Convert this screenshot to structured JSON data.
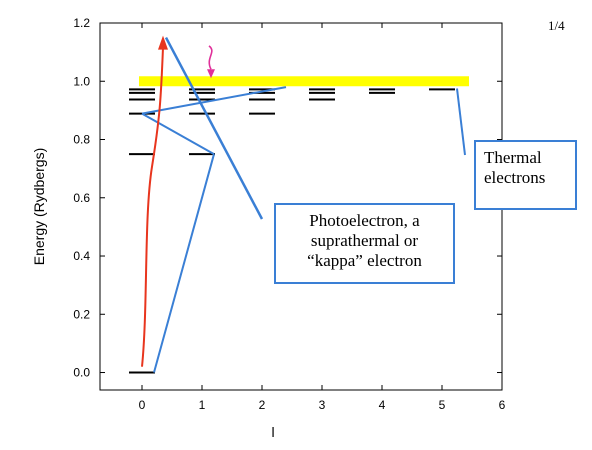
{
  "page_number": "1/4",
  "chart_data": {
    "type": "diagram",
    "title": "",
    "xlabel": "l",
    "ylabel": "Energy (Rydbergs)",
    "xlim": [
      -0.7,
      6
    ],
    "ylim": [
      -0.06,
      1.2
    ],
    "xticks": [
      "0",
      "1",
      "2",
      "3",
      "4",
      "5",
      "6"
    ],
    "yticks": [
      "0.0",
      "0.2",
      "0.4",
      "0.6",
      "0.8",
      "1.0",
      "1.2"
    ],
    "ionization_band": {
      "energy": 1.0,
      "color": "#ffff00"
    },
    "energy_levels": [
      {
        "l": 0,
        "energy": 0.0
      },
      {
        "l": 0,
        "energy": 0.75
      },
      {
        "l": 0,
        "energy": 0.889
      },
      {
        "l": 0,
        "energy": 0.9375
      },
      {
        "l": 0,
        "energy": 0.96
      },
      {
        "l": 0,
        "energy": 0.972
      },
      {
        "l": 1,
        "energy": 0.75
      },
      {
        "l": 1,
        "energy": 0.889
      },
      {
        "l": 1,
        "energy": 0.9375
      },
      {
        "l": 1,
        "energy": 0.96
      },
      {
        "l": 1,
        "energy": 0.972
      },
      {
        "l": 2,
        "energy": 0.889
      },
      {
        "l": 2,
        "energy": 0.9375
      },
      {
        "l": 2,
        "energy": 0.96
      },
      {
        "l": 2,
        "energy": 0.972
      },
      {
        "l": 3,
        "energy": 0.9375
      },
      {
        "l": 3,
        "energy": 0.96
      },
      {
        "l": 3,
        "energy": 0.972
      },
      {
        "l": 4,
        "energy": 0.96
      },
      {
        "l": 4,
        "energy": 0.972
      },
      {
        "l": 5,
        "energy": 0.972
      }
    ],
    "transitions": [
      {
        "from": [
          0.2,
          0.0
        ],
        "to": [
          1.2,
          0.75
        ],
        "color": "#3a7fd5"
      },
      {
        "from": [
          1.2,
          0.75
        ],
        "to": [
          0.0,
          0.889
        ],
        "color": "#3a7fd5"
      },
      {
        "from": [
          0.0,
          0.889
        ],
        "to": [
          2.4,
          0.98
        ],
        "color": "#3a7fd5"
      }
    ],
    "excitation_arrow": {
      "from": [
        0.0,
        0.02
      ],
      "to": [
        0.35,
        1.15
      ],
      "color": "#e8351e"
    },
    "recombination_arrow": {
      "from": [
        1.15,
        1.08
      ],
      "to": [
        1.15,
        1.0
      ],
      "color": "#e0309a"
    },
    "annotations": [
      {
        "label": "Thermal electrons",
        "lines": [
          "Thermal",
          "electrons"
        ],
        "color": "#3a7fd5"
      },
      {
        "label": "Photoelectron, a suprathermal or “kappa” electron",
        "lines": [
          "Photoelectron, a",
          "suprathermal or",
          "“kappa” electron"
        ],
        "color": "#3a7fd5"
      }
    ]
  }
}
